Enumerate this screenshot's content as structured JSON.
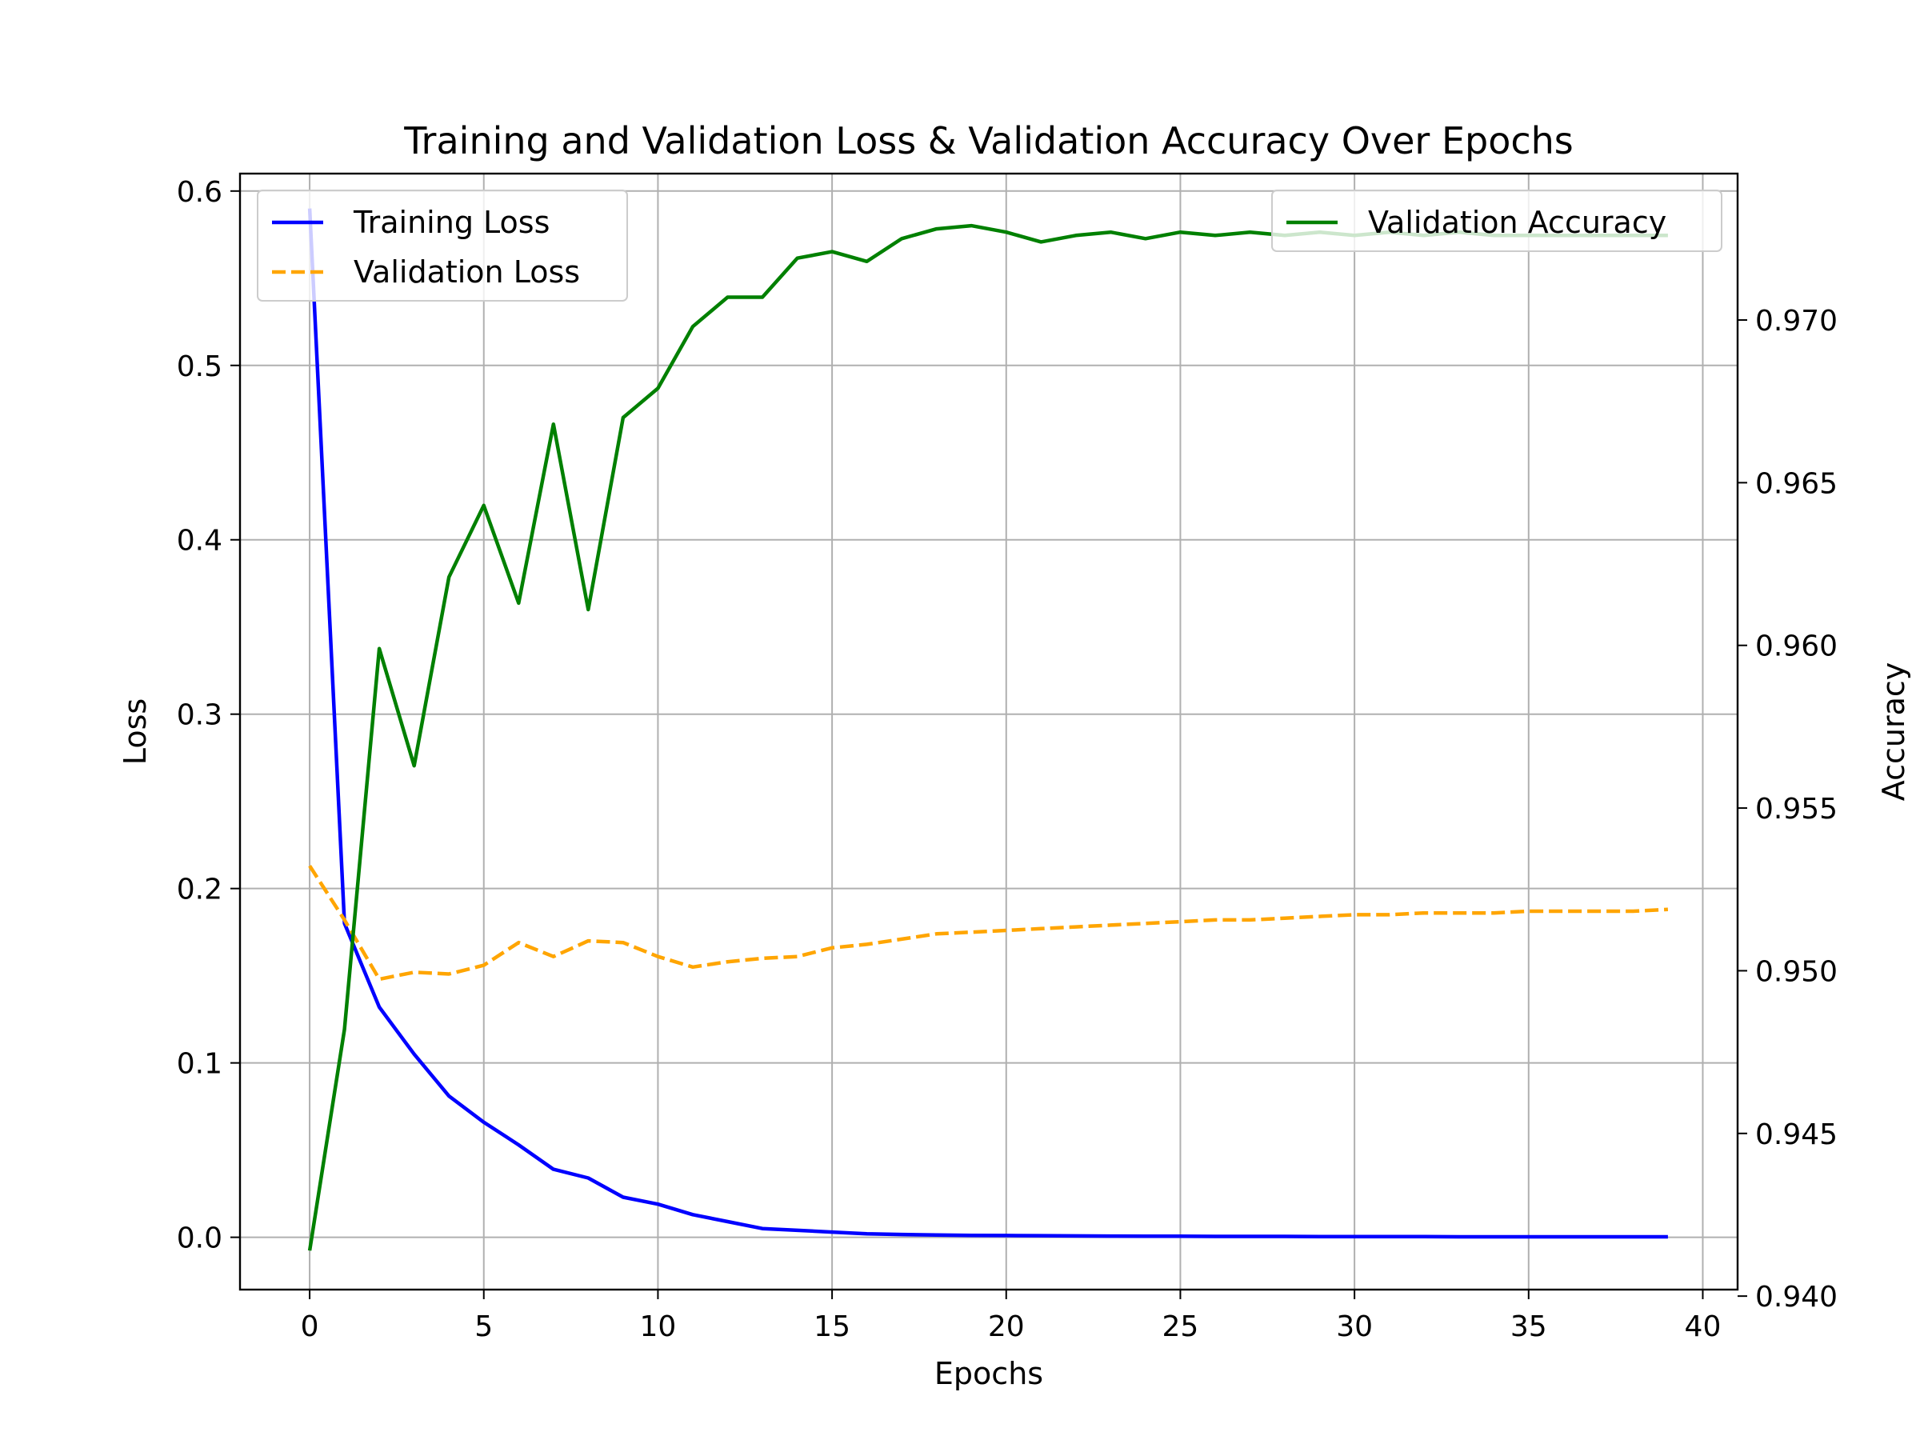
{
  "chart_data": {
    "type": "line",
    "title": "Training and Validation Loss & Validation Accuracy Over Epochs",
    "xlabel": "Epochs",
    "ylabel": "Loss",
    "ylabel_right": "Accuracy",
    "xlim": [
      -2,
      41
    ],
    "ylim": [
      -0.03,
      0.61
    ],
    "ylim_right": [
      0.9402,
      0.9745
    ],
    "xticks": [
      0,
      5,
      10,
      15,
      20,
      25,
      30,
      35,
      40
    ],
    "yticks": [
      0.0,
      0.1,
      0.2,
      0.3,
      0.4,
      0.5,
      0.6
    ],
    "yticks_right": [
      0.94,
      0.945,
      0.95,
      0.955,
      0.96,
      0.965,
      0.97
    ],
    "xtick_labels": [
      "0",
      "5",
      "10",
      "15",
      "20",
      "25",
      "30",
      "35",
      "40"
    ],
    "ytick_labels": [
      "0.0",
      "0.1",
      "0.2",
      "0.3",
      "0.4",
      "0.5",
      "0.6"
    ],
    "ytick_labels_right": [
      "0.940",
      "0.945",
      "0.950",
      "0.955",
      "0.960",
      "0.965",
      "0.970"
    ],
    "grid": true,
    "x": [
      0,
      1,
      2,
      3,
      4,
      5,
      6,
      7,
      8,
      9,
      10,
      11,
      12,
      13,
      14,
      15,
      16,
      17,
      18,
      19,
      20,
      21,
      22,
      23,
      24,
      25,
      26,
      27,
      28,
      29,
      30,
      31,
      32,
      33,
      34,
      35,
      36,
      37,
      38,
      39
    ],
    "series": [
      {
        "name": "Training Loss",
        "axis": "left",
        "color": "#0000ff",
        "style": "solid",
        "values": [
          0.59,
          0.18,
          0.132,
          0.105,
          0.081,
          0.066,
          0.053,
          0.039,
          0.034,
          0.023,
          0.019,
          0.013,
          0.009,
          0.005,
          0.004,
          0.003,
          0.002,
          0.0016,
          0.0013,
          0.0011,
          0.001,
          0.0009,
          0.0008,
          0.0007,
          0.0006,
          0.0006,
          0.0005,
          0.0005,
          0.0005,
          0.0004,
          0.0004,
          0.0004,
          0.0004,
          0.0003,
          0.0003,
          0.0003,
          0.0003,
          0.0003,
          0.0003,
          0.0003
        ]
      },
      {
        "name": "Validation Loss",
        "axis": "left",
        "color": "#ffa500",
        "style": "dashed",
        "values": [
          0.213,
          0.182,
          0.148,
          0.152,
          0.151,
          0.156,
          0.169,
          0.161,
          0.17,
          0.169,
          0.161,
          0.155,
          0.158,
          0.16,
          0.161,
          0.166,
          0.168,
          0.171,
          0.174,
          0.175,
          0.176,
          0.177,
          0.178,
          0.179,
          0.18,
          0.181,
          0.182,
          0.182,
          0.183,
          0.184,
          0.185,
          0.185,
          0.186,
          0.186,
          0.186,
          0.187,
          0.187,
          0.187,
          0.187,
          0.188
        ]
      },
      {
        "name": "Validation Accuracy",
        "axis": "right",
        "color": "#008000",
        "style": "solid",
        "values": [
          0.9414,
          0.9482,
          0.9599,
          0.9563,
          0.9621,
          0.9643,
          0.9613,
          0.9668,
          0.9611,
          0.967,
          0.9679,
          0.9698,
          0.9707,
          0.9707,
          0.9719,
          0.9721,
          0.9718,
          0.9725,
          0.9728,
          0.9729,
          0.9727,
          0.9724,
          0.9726,
          0.9727,
          0.9725,
          0.9727,
          0.9726,
          0.9727,
          0.9726,
          0.9727,
          0.9726,
          0.9727,
          0.9726,
          0.9727,
          0.9726,
          0.9726,
          0.9726,
          0.9726,
          0.9726,
          0.9726
        ]
      }
    ],
    "legend_left": {
      "position": "upper-left",
      "entries": [
        "Training Loss",
        "Validation Loss"
      ]
    },
    "legend_right": {
      "position": "upper-right",
      "entries": [
        "Validation Accuracy"
      ]
    }
  }
}
